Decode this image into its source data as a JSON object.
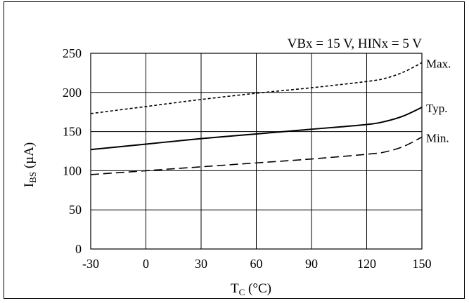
{
  "chart_data": {
    "type": "line",
    "annotation": "VBx = 15 V, HINx = 5 V",
    "xlabel_main": "T",
    "xlabel_sub": "C",
    "xlabel_unit": " (°C)",
    "ylabel_main": "I",
    "ylabel_sub": "BS",
    "ylabel_unit": " (µA)",
    "xlim": [
      -30,
      150
    ],
    "ylim": [
      0,
      250
    ],
    "xticks": [
      -30,
      0,
      30,
      60,
      90,
      120,
      150
    ],
    "yticks": [
      0,
      50,
      100,
      150,
      200,
      250
    ],
    "grid": true,
    "series": [
      {
        "name": "Max.",
        "style": "dotted",
        "x": [
          -30,
          0,
          30,
          60,
          90,
          120,
          130,
          140,
          150
        ],
        "y": [
          173,
          182,
          191,
          199,
          206,
          214,
          218,
          226,
          238
        ]
      },
      {
        "name": "Typ.",
        "style": "solid",
        "x": [
          -30,
          0,
          30,
          60,
          90,
          120,
          130,
          140,
          150
        ],
        "y": [
          127,
          134,
          141,
          147,
          153,
          159,
          163,
          170,
          181
        ]
      },
      {
        "name": "Min.",
        "style": "dashed",
        "x": [
          -30,
          0,
          30,
          60,
          90,
          120,
          130,
          140,
          150
        ],
        "y": [
          95,
          100,
          105,
          110,
          115,
          121,
          124,
          131,
          143
        ]
      }
    ]
  }
}
